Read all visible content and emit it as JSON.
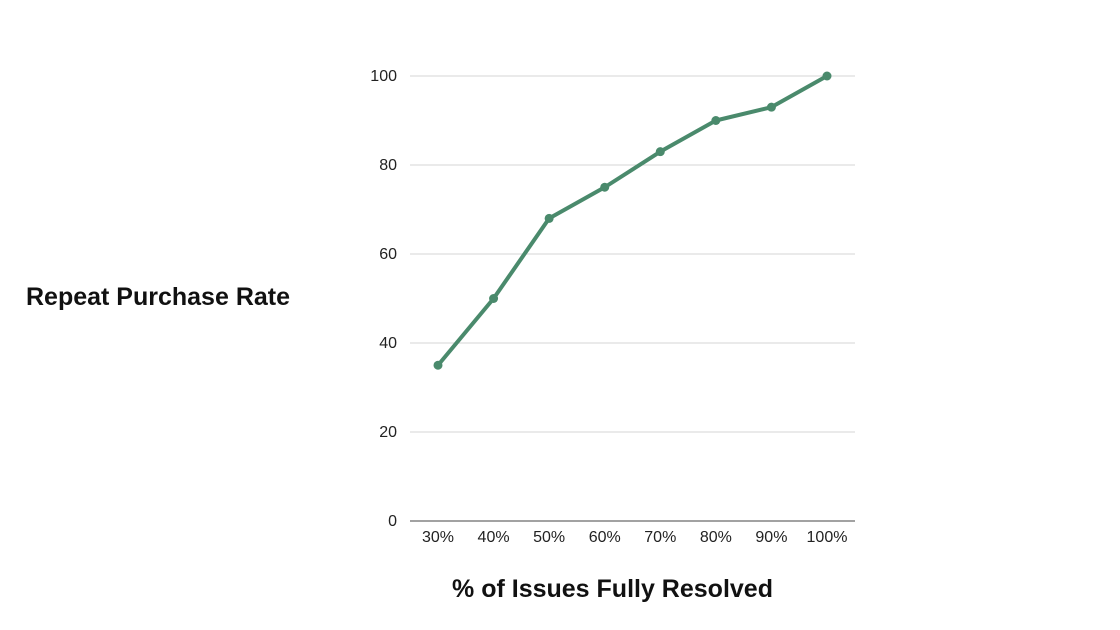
{
  "chart_data": {
    "type": "line",
    "title": "",
    "xlabel": "% of Issues Fully Resolved",
    "ylabel": "Repeat Purchase Rate",
    "categories": [
      "30%",
      "40%",
      "50%",
      "60%",
      "70%",
      "80%",
      "90%",
      "100%"
    ],
    "series": [
      {
        "values": [
          35,
          50,
          68,
          75,
          83,
          90,
          93,
          100
        ]
      }
    ],
    "ylim": [
      0,
      100
    ],
    "yticks": [
      "0",
      "20",
      "40",
      "60",
      "80",
      "100"
    ],
    "grid": "horizontal",
    "legend": "none",
    "line_color": "#4a8a6c",
    "grid_color": "#d4d4d4",
    "axis_color": "#444444"
  }
}
